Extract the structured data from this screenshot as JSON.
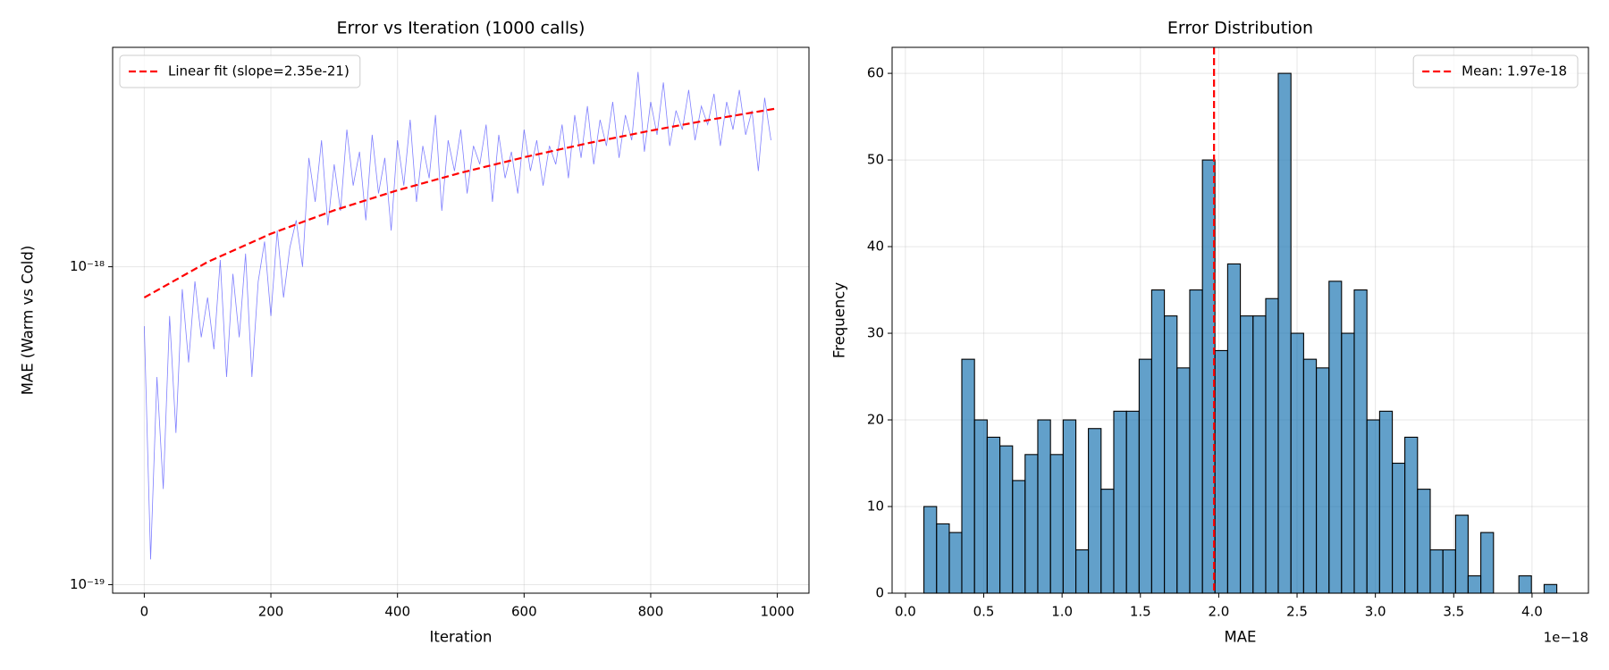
{
  "chart_data": [
    {
      "type": "line",
      "title": "Error vs Iteration (1000 calls)",
      "xlabel": "Iteration",
      "ylabel": "MAE (Warm vs Cold)",
      "xlim": [
        -50,
        1050
      ],
      "ylim": [
        9.4e-20,
        4.9e-18
      ],
      "log_y": true,
      "grid": true,
      "legend": "upper left",
      "xticks": [
        0,
        200,
        400,
        600,
        800,
        1000
      ],
      "yticks": [
        {
          "value": 1e-19,
          "label": "10⁻¹⁹"
        },
        {
          "value": 1e-18,
          "label": "10⁻¹⁸"
        }
      ],
      "series": [
        {
          "color": "#0000ff",
          "opacity": 0.5,
          "dashed": false,
          "x": [
            0,
            10,
            20,
            30,
            40,
            50,
            60,
            70,
            80,
            90,
            100,
            110,
            120,
            130,
            140,
            150,
            160,
            170,
            180,
            190,
            200,
            210,
            220,
            230,
            240,
            250,
            260,
            270,
            280,
            290,
            300,
            310,
            320,
            330,
            340,
            350,
            360,
            370,
            380,
            390,
            400,
            410,
            420,
            430,
            440,
            450,
            460,
            470,
            480,
            490,
            500,
            510,
            520,
            530,
            540,
            550,
            560,
            570,
            580,
            590,
            600,
            610,
            620,
            630,
            640,
            650,
            660,
            670,
            680,
            690,
            700,
            710,
            720,
            730,
            740,
            750,
            760,
            770,
            780,
            790,
            800,
            810,
            820,
            830,
            840,
            850,
            860,
            870,
            880,
            890,
            900,
            910,
            920,
            930,
            940,
            950,
            960,
            970,
            980,
            990
          ],
          "values": [
            6.5e-19,
            1.2e-19,
            4.5e-19,
            2e-19,
            7e-19,
            3e-19,
            8.5e-19,
            5e-19,
            9e-19,
            6e-19,
            8e-19,
            5.5e-19,
            1.05e-18,
            4.5e-19,
            9.5e-19,
            6e-19,
            1.1e-18,
            4.5e-19,
            9e-19,
            1.2e-18,
            7e-19,
            1.3e-18,
            8e-19,
            1.15e-18,
            1.4e-18,
            1e-18,
            2.2e-18,
            1.6e-18,
            2.5e-18,
            1.35e-18,
            2.1e-18,
            1.5e-18,
            2.7e-18,
            1.8e-18,
            2.3e-18,
            1.4e-18,
            2.6e-18,
            1.7e-18,
            2.2e-18,
            1.3e-18,
            2.5e-18,
            1.8e-18,
            2.9e-18,
            1.6e-18,
            2.4e-18,
            1.9e-18,
            3e-18,
            1.5e-18,
            2.5e-18,
            2e-18,
            2.7e-18,
            1.7e-18,
            2.4e-18,
            2.1e-18,
            2.8e-18,
            1.6e-18,
            2.6e-18,
            1.9e-18,
            2.3e-18,
            1.7e-18,
            2.7e-18,
            2e-18,
            2.5e-18,
            1.8e-18,
            2.4e-18,
            2.1e-18,
            2.8e-18,
            1.9e-18,
            3e-18,
            2.2e-18,
            3.2e-18,
            2.1e-18,
            2.9e-18,
            2.4e-18,
            3.3e-18,
            2.2e-18,
            3e-18,
            2.5e-18,
            4.1e-18,
            2.3e-18,
            3.3e-18,
            2.6e-18,
            3.8e-18,
            2.4e-18,
            3.1e-18,
            2.7e-18,
            3.6e-18,
            2.5e-18,
            3.2e-18,
            2.8e-18,
            3.5e-18,
            2.4e-18,
            3.3e-18,
            2.7e-18,
            3.6e-18,
            2.6e-18,
            3.1e-18,
            2e-18,
            3.4e-18,
            2.5e-18
          ]
        },
        {
          "name": "Linear fit (slope=2.35e-21)",
          "color": "#ff0000",
          "opacity": 1,
          "dashed": true,
          "x": [
            0,
            100,
            200,
            300,
            400,
            500,
            600,
            700,
            800,
            900,
            1000
          ],
          "values": [
            8e-19,
            1.035e-18,
            1.27e-18,
            1.505e-18,
            1.74e-18,
            1.975e-18,
            2.21e-18,
            2.445e-18,
            2.68e-18,
            2.915e-18,
            3.15e-18
          ]
        }
      ]
    },
    {
      "type": "histogram",
      "title": "Error Distribution",
      "xlabel": "MAE",
      "ylabel": "Frequency",
      "x_offset_label": "1e−18",
      "xlim": [
        -8.5e-20,
        4.36e-18
      ],
      "ylim": [
        0,
        63
      ],
      "grid": true,
      "legend": "upper right",
      "xticks": [
        {
          "value": 0,
          "label": "0.0"
        },
        {
          "value": 5e-19,
          "label": "0.5"
        },
        {
          "value": 1e-18,
          "label": "1.0"
        },
        {
          "value": 1.5e-18,
          "label": "1.5"
        },
        {
          "value": 2e-18,
          "label": "2.0"
        },
        {
          "value": 2.5e-18,
          "label": "2.5"
        },
        {
          "value": 3e-18,
          "label": "3.0"
        },
        {
          "value": 3.5e-18,
          "label": "3.5"
        },
        {
          "value": 4e-18,
          "label": "4.0"
        }
      ],
      "yticks": [
        0,
        10,
        20,
        30,
        40,
        50,
        60
      ],
      "color": "#1f77b4",
      "alpha": 0.7,
      "edgecolor": "#000000",
      "bins": [
        1.18e-19,
        1.99e-19,
        2.8e-19,
        3.6e-19,
        4.41e-19,
        5.22e-19,
        6.03e-19,
        6.84e-19,
        7.64e-19,
        8.45e-19,
        9.26e-19,
        1.007e-18,
        1.088e-18,
        1.168e-18,
        1.249e-18,
        1.33e-18,
        1.411e-18,
        1.492e-18,
        1.572e-18,
        1.653e-18,
        1.734e-18,
        1.815e-18,
        1.896e-18,
        1.976e-18,
        2.057e-18,
        2.138e-18,
        2.219e-18,
        2.3e-18,
        2.38e-18,
        2.461e-18,
        2.542e-18,
        2.623e-18,
        2.704e-18,
        2.784e-18,
        2.865e-18,
        2.946e-18,
        3.027e-18,
        3.108e-18,
        3.188e-18,
        3.269e-18,
        3.35e-18,
        3.431e-18,
        3.512e-18,
        3.592e-18,
        3.673e-18,
        3.754e-18,
        3.835e-18,
        3.916e-18,
        3.996e-18,
        4.077e-18,
        4.158e-18
      ],
      "counts": [
        10,
        8,
        7,
        27,
        20,
        18,
        17,
        13,
        16,
        20,
        16,
        20,
        5,
        19,
        12,
        21,
        21,
        27,
        35,
        32,
        26,
        35,
        50,
        28,
        38,
        32,
        32,
        34,
        60,
        30,
        27,
        26,
        36,
        30,
        35,
        20,
        21,
        15,
        18,
        12,
        5,
        5,
        9,
        2,
        7,
        0,
        0,
        2,
        0,
        1
      ],
      "mean_line": {
        "value": 1.97e-18,
        "name": "Mean: 1.97e-18",
        "color": "#ff0000"
      }
    }
  ]
}
